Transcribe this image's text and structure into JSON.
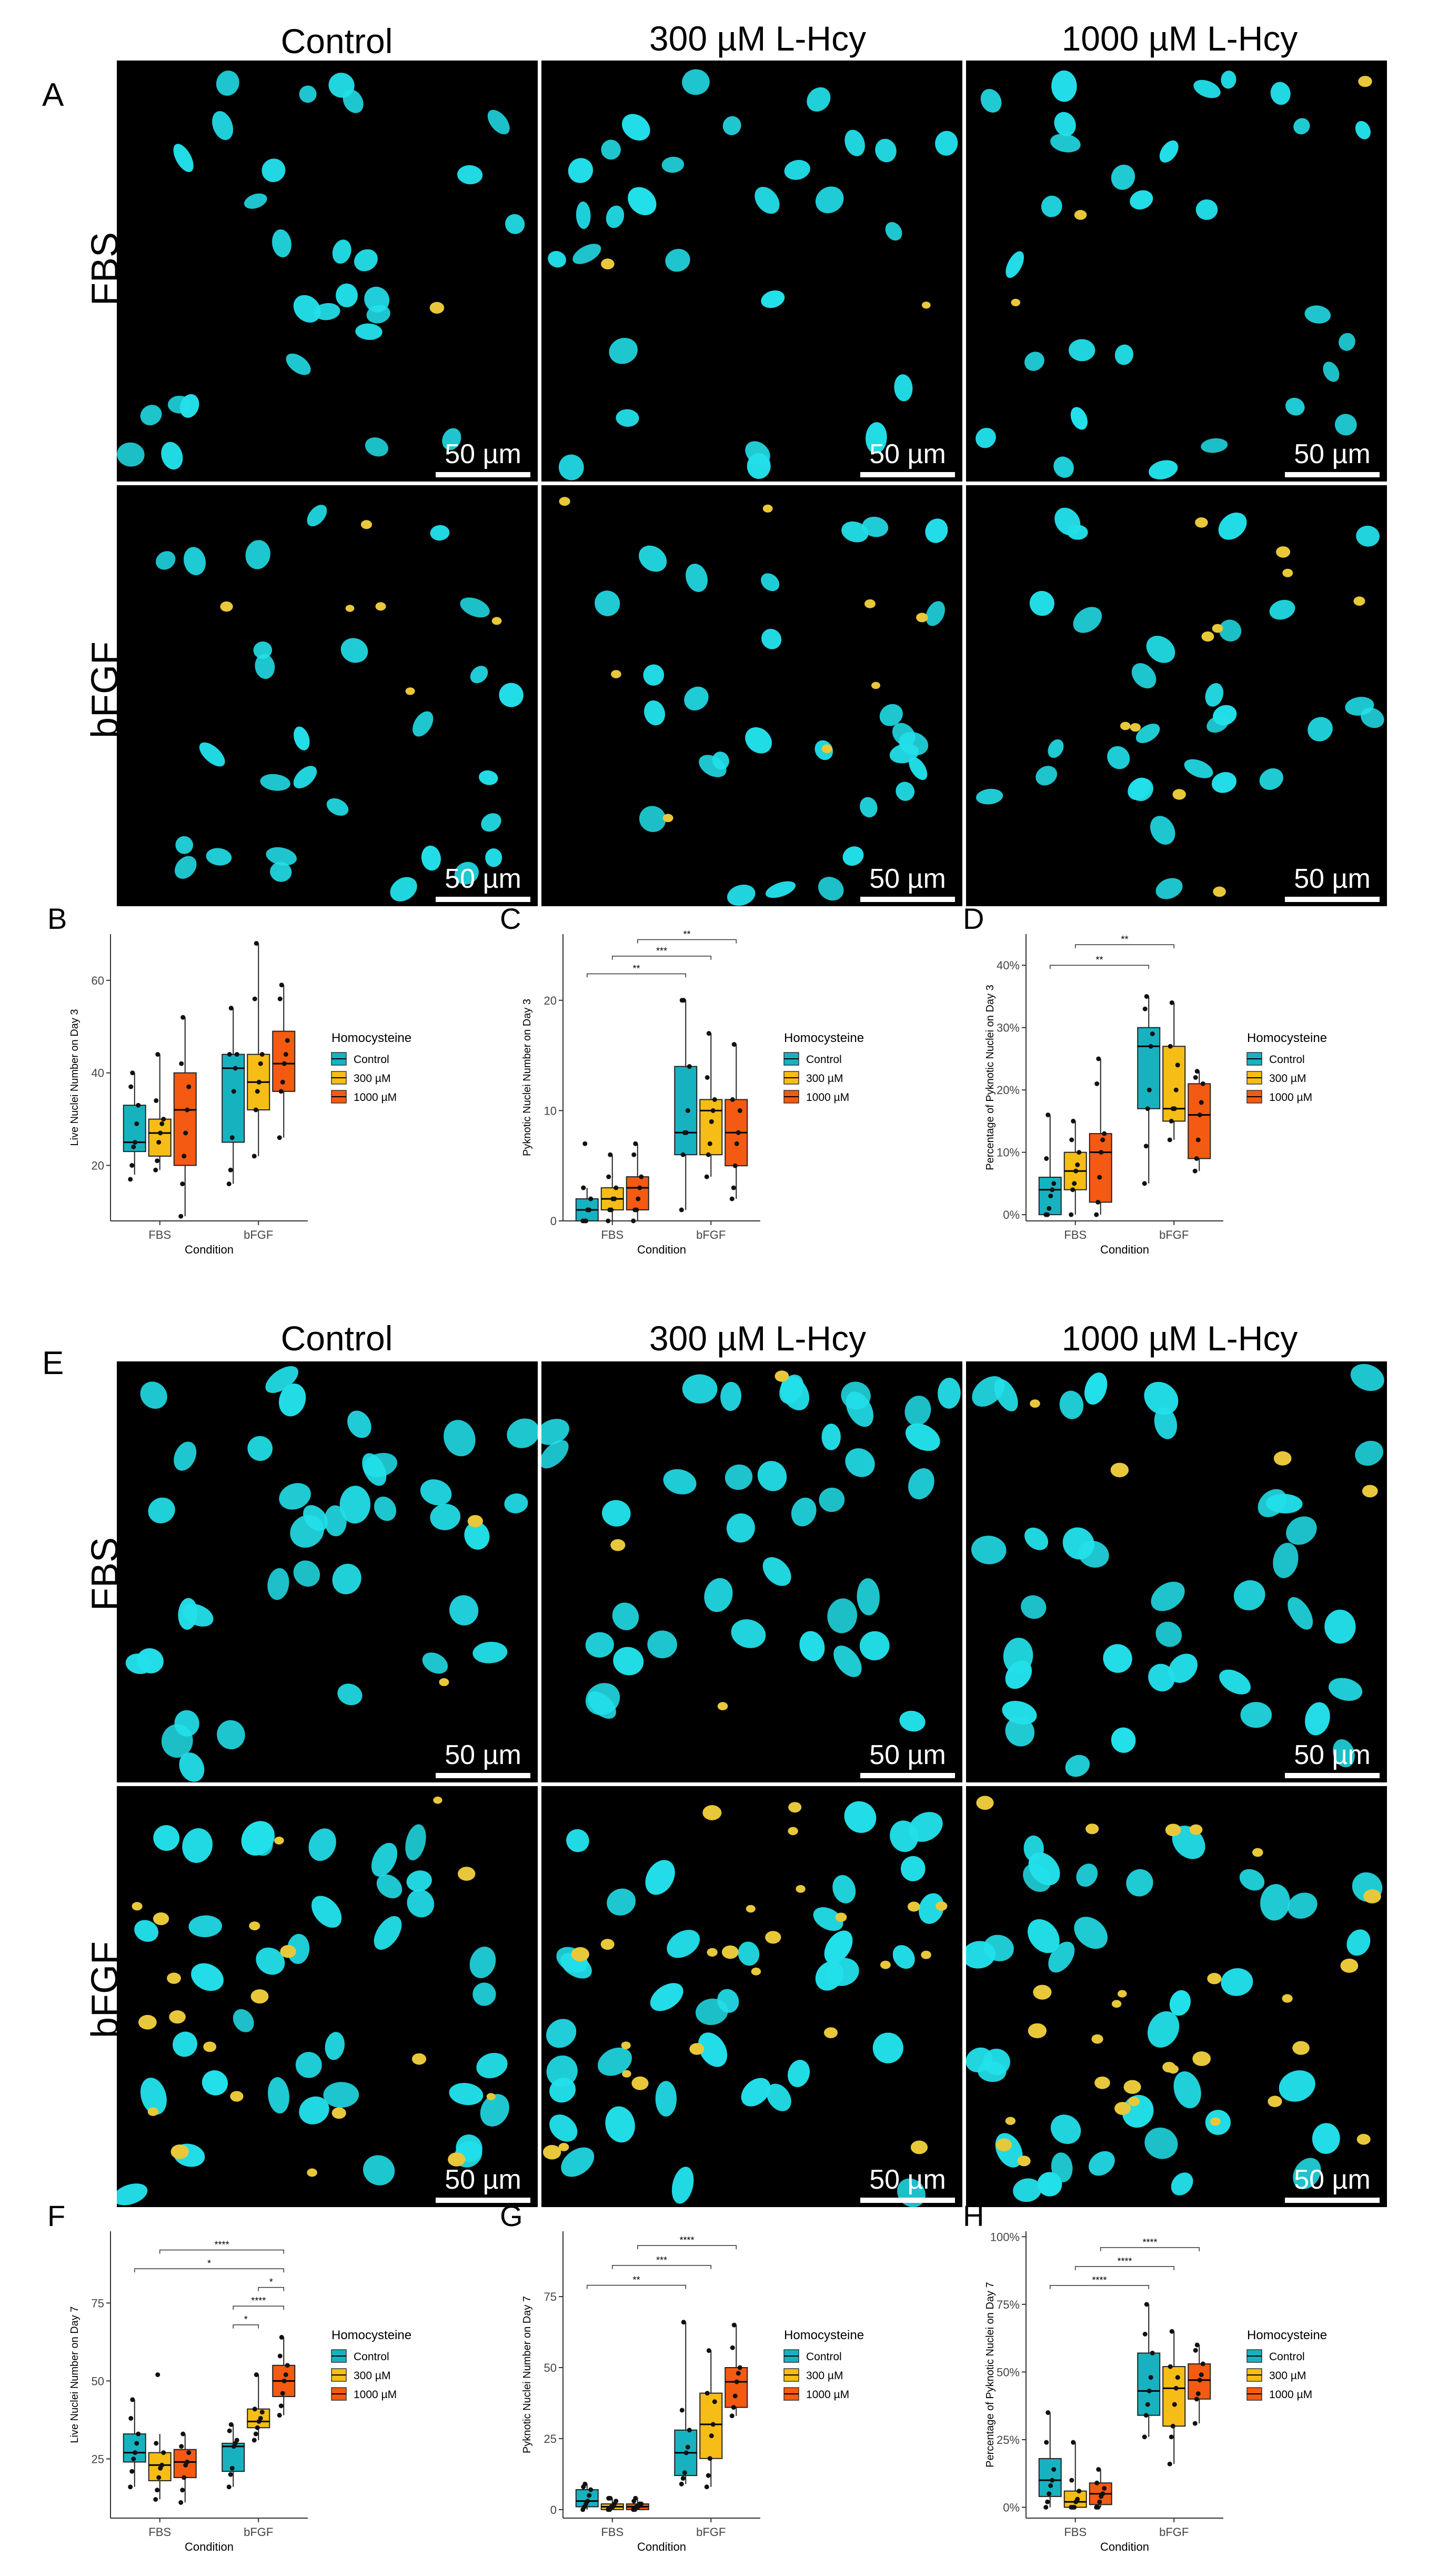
{
  "figure": {
    "panel_labels": {
      "A": "A",
      "B": "B",
      "C": "C",
      "D": "D",
      "E": "E",
      "F": "F",
      "G": "G",
      "H": "H"
    },
    "column_titles": [
      "Control",
      "300 µM L-Hcy",
      "1000 µM L-Hcy"
    ],
    "row_titles": [
      "FBS",
      "bFGF"
    ],
    "scale_bar_label": "50 µm",
    "colors": {
      "nuclei": "#22e0ea",
      "pyknotic": "#e8c83a",
      "control": "#17b2c0",
      "mid": "#f6bd16",
      "high": "#f45a12"
    }
  },
  "chart_data": [
    {
      "id": "B",
      "type": "box",
      "title": "",
      "xlabel": "Condition",
      "ylabel": "Live Nuclei Number on Day 3",
      "categories": [
        "FBS",
        "bFGF"
      ],
      "ylim": [
        8,
        70
      ],
      "yticks": [
        20,
        40,
        60
      ],
      "ytick_labels": [
        "20",
        "40",
        "60"
      ],
      "legend_title": "Homocysteine",
      "series": [
        {
          "name": "Control",
          "boxes": [
            [
              18,
              23,
              25,
              33,
              40
            ],
            [
              16,
              25,
              41,
              44,
              54
            ]
          ],
          "points": [
            [
              17,
              20,
              24,
              25,
              29,
              33,
              37,
              40
            ],
            [
              16,
              19,
              26,
              36,
              41,
              44,
              44,
              54
            ]
          ]
        },
        {
          "name": "300 µM",
          "boxes": [
            [
              19,
              22,
              27,
              30,
              44
            ],
            [
              22,
              32,
              38,
              44,
              68
            ]
          ],
          "points": [
            [
              19,
              21,
              25,
              27,
              29,
              30,
              34,
              44
            ],
            [
              22,
              32,
              36,
              38,
              42,
              44,
              56,
              68
            ]
          ]
        },
        {
          "name": "1000 µM",
          "boxes": [
            [
              9,
              20,
              32,
              40,
              52
            ],
            [
              26,
              36,
              42,
              49,
              59
            ]
          ],
          "points": [
            [
              9,
              16,
              22,
              27,
              32,
              37,
              42,
              52
            ],
            [
              26,
              36,
              38,
              42,
              44,
              47,
              56,
              59
            ]
          ]
        }
      ],
      "significance": []
    },
    {
      "id": "C",
      "type": "box",
      "title": "",
      "xlabel": "Condition",
      "ylabel": "Pyknotic Nuclei Number on Day 3",
      "categories": [
        "FBS",
        "bFGF"
      ],
      "ylim": [
        0,
        26
      ],
      "yticks": [
        0,
        10,
        20
      ],
      "ytick_labels": [
        "0",
        "10",
        "20"
      ],
      "legend_title": "Homocysteine",
      "series": [
        {
          "name": "Control",
          "boxes": [
            [
              0,
              0,
              1,
              2,
              3
            ],
            [
              1,
              6,
              8,
              14,
              20
            ]
          ],
          "points": [
            [
              0,
              0,
              0,
              1,
              1,
              2,
              3,
              7
            ],
            [
              1,
              6,
              8,
              8,
              10,
              14,
              20,
              20
            ]
          ]
        },
        {
          "name": "300 µM",
          "boxes": [
            [
              0,
              1,
              2,
              3,
              6
            ],
            [
              4,
              6,
              10,
              11,
              17
            ]
          ],
          "points": [
            [
              0,
              1,
              1,
              2,
              2,
              3,
              4,
              6
            ],
            [
              4,
              6,
              7,
              9,
              10,
              11,
              13,
              17
            ]
          ]
        },
        {
          "name": "1000 µM",
          "boxes": [
            [
              0,
              1,
              3,
              4,
              7
            ],
            [
              2,
              5,
              8,
              11,
              16
            ]
          ],
          "points": [
            [
              0,
              1,
              1,
              2,
              3,
              4,
              6,
              7
            ],
            [
              2,
              3,
              5,
              7,
              8,
              10,
              11,
              16
            ]
          ]
        }
      ],
      "significance": [
        {
          "from": [
            0,
            0
          ],
          "to": [
            1,
            0
          ],
          "label": "**",
          "y": 22.4
        },
        {
          "from": [
            0,
            1
          ],
          "to": [
            1,
            1
          ],
          "label": "***",
          "y": 24
        },
        {
          "from": [
            0,
            2
          ],
          "to": [
            1,
            2
          ],
          "label": "**",
          "y": 25.5
        }
      ]
    },
    {
      "id": "D",
      "type": "box",
      "title": "",
      "xlabel": "Condition",
      "ylabel": "Percentage of Pyknotic Nuclei on Day 3",
      "categories": [
        "FBS",
        "bFGF"
      ],
      "ylim": [
        -1,
        45
      ],
      "yticks": [
        0,
        10,
        20,
        30,
        40
      ],
      "ytick_labels": [
        "0%",
        "10%",
        "20%",
        "30%",
        "40%"
      ],
      "legend_title": "Homocysteine",
      "series": [
        {
          "name": "Control",
          "boxes": [
            [
              0,
              0,
              4,
              6,
              16
            ],
            [
              5,
              17,
              27,
              30,
              35
            ]
          ],
          "points": [
            [
              0,
              0,
              1,
              3,
              4,
              5,
              9,
              16
            ],
            [
              5,
              11,
              17,
              20,
              27,
              29,
              33,
              35
            ]
          ]
        },
        {
          "name": "300 µM",
          "boxes": [
            [
              0,
              4,
              7,
              10,
              15
            ],
            [
              12,
              15,
              17,
              27,
              34
            ]
          ],
          "points": [
            [
              0,
              4,
              5,
              7,
              8,
              10,
              12,
              15
            ],
            [
              12,
              15,
              17,
              17,
              20,
              24,
              27,
              34
            ]
          ]
        },
        {
          "name": "1000 µM",
          "boxes": [
            [
              0,
              2,
              10,
              13,
              25
            ],
            [
              7,
              9,
              16,
              21,
              23
            ]
          ],
          "points": [
            [
              0,
              2,
              6,
              10,
              12,
              13,
              21,
              25
            ],
            [
              7,
              9,
              12,
              16,
              18,
              21,
              22,
              23
            ]
          ]
        }
      ],
      "significance": [
        {
          "from": [
            0,
            0
          ],
          "to": [
            1,
            0
          ],
          "label": "**",
          "y": 40
        },
        {
          "from": [
            0,
            1
          ],
          "to": [
            1,
            1
          ],
          "label": "**",
          "y": 43.3
        }
      ]
    },
    {
      "id": "F",
      "type": "box",
      "title": "",
      "xlabel": "Condition",
      "ylabel": "Live Nuclei Number on Day 7",
      "categories": [
        "FBS",
        "bFGF"
      ],
      "ylim": [
        6,
        98
      ],
      "yticks": [
        25,
        50,
        75
      ],
      "ytick_labels": [
        "25",
        "50",
        "75"
      ],
      "legend_title": "Homocysteine",
      "series": [
        {
          "name": "Control",
          "boxes": [
            [
              16,
              24,
              27,
              33,
              44
            ],
            [
              16,
              21,
              29,
              30,
              36
            ]
          ],
          "points": [
            [
              16,
              21,
              25,
              27,
              30,
              33,
              38,
              44
            ],
            [
              16,
              20,
              22,
              29,
              30,
              31,
              34,
              36
            ]
          ]
        },
        {
          "name": "300 µM",
          "boxes": [
            [
              12,
              18,
              23,
              27,
              33
            ],
            [
              31,
              35,
              37,
              41,
              52
            ]
          ],
          "points": [
            [
              12,
              15,
              19,
              22,
              23,
              27,
              30,
              52
            ],
            [
              31,
              33,
              35,
              37,
              38,
              40,
              41,
              52
            ]
          ]
        },
        {
          "name": "1000 µM",
          "boxes": [
            [
              11,
              19,
              24,
              28,
              33
            ],
            [
              39,
              45,
              50,
              55,
              64
            ]
          ],
          "points": [
            [
              11,
              15,
              19,
              23,
              24,
              27,
              29,
              33
            ],
            [
              39,
              42,
              46,
              50,
              52,
              55,
              58,
              64
            ]
          ]
        }
      ],
      "significance": [
        {
          "from": [
            1,
            0
          ],
          "to": [
            1,
            1
          ],
          "label": "*",
          "y": 68
        },
        {
          "from": [
            1,
            0
          ],
          "to": [
            1,
            2
          ],
          "label": "****",
          "y": 74
        },
        {
          "from": [
            1,
            1
          ],
          "to": [
            1,
            2
          ],
          "label": "*",
          "y": 80
        },
        {
          "from": [
            0,
            0
          ],
          "to": [
            1,
            2
          ],
          "label": "*",
          "y": 86
        },
        {
          "from": [
            0,
            1
          ],
          "to": [
            1,
            2
          ],
          "label": "****",
          "y": 92
        }
      ]
    },
    {
      "id": "G",
      "type": "box",
      "title": "",
      "xlabel": "Condition",
      "ylabel": "Pyknotic Nuclei Number on Day 7",
      "categories": [
        "FBS",
        "bFGF"
      ],
      "ylim": [
        -3,
        98
      ],
      "yticks": [
        0,
        25,
        50,
        75
      ],
      "ytick_labels": [
        "0",
        "25",
        "50",
        "75"
      ],
      "legend_title": "Homocysteine",
      "series": [
        {
          "name": "Control",
          "boxes": [
            [
              0,
              1,
              3,
              7,
              9
            ],
            [
              9,
              12,
              20,
              28,
              66
            ]
          ],
          "points": [
            [
              0,
              1,
              2,
              3,
              5,
              7,
              8,
              9
            ],
            [
              9,
              11,
              13,
              20,
              22,
              28,
              35,
              66
            ]
          ]
        },
        {
          "name": "300 µM",
          "boxes": [
            [
              0,
              0,
              1,
              2,
              4
            ],
            [
              8,
              18,
              30,
              41,
              56
            ]
          ],
          "points": [
            [
              0,
              0,
              1,
              1,
              2,
              3,
              4,
              4
            ],
            [
              8,
              12,
              18,
              26,
              30,
              38,
              41,
              56
            ]
          ]
        },
        {
          "name": "1000 µM",
          "boxes": [
            [
              0,
              0,
              1,
              2,
              4
            ],
            [
              33,
              36,
              45,
              50,
              65
            ]
          ],
          "points": [
            [
              0,
              0,
              1,
              1,
              2,
              2,
              3,
              4
            ],
            [
              33,
              36,
              40,
              45,
              48,
              50,
              57,
              65
            ]
          ]
        }
      ],
      "significance": [
        {
          "from": [
            0,
            0
          ],
          "to": [
            1,
            0
          ],
          "label": "**",
          "y": 79
        },
        {
          "from": [
            0,
            1
          ],
          "to": [
            1,
            1
          ],
          "label": "***",
          "y": 86
        },
        {
          "from": [
            0,
            2
          ],
          "to": [
            1,
            2
          ],
          "label": "****",
          "y": 93
        }
      ]
    },
    {
      "id": "H",
      "type": "box",
      "title": "",
      "xlabel": "Condition",
      "ylabel": "Percentage of Pyknotic Nuclei on Day 7",
      "categories": [
        "FBS",
        "bFGF"
      ],
      "ylim": [
        -4,
        102
      ],
      "yticks": [
        0,
        25,
        50,
        75,
        100
      ],
      "ytick_labels": [
        "0%",
        "25%",
        "50%",
        "75%",
        "100%"
      ],
      "legend_title": "Homocysteine",
      "series": [
        {
          "name": "Control",
          "boxes": [
            [
              0,
              4,
              10,
              18,
              35
            ],
            [
              26,
              34,
              43,
              57,
              75
            ]
          ],
          "points": [
            [
              0,
              2,
              5,
              8,
              10,
              14,
              24,
              35
            ],
            [
              26,
              34,
              38,
              43,
              48,
              57,
              64,
              75
            ]
          ]
        },
        {
          "name": "300 µM",
          "boxes": [
            [
              0,
              0,
              2,
              6,
              24
            ],
            [
              16,
              30,
              44,
              52,
              65
            ]
          ],
          "points": [
            [
              0,
              0,
              0,
              2,
              3,
              6,
              10,
              24
            ],
            [
              16,
              26,
              30,
              38,
              44,
              48,
              52,
              65
            ]
          ]
        },
        {
          "name": "1000 µM",
          "boxes": [
            [
              0,
              1,
              5,
              9,
              14
            ],
            [
              31,
              40,
              47,
              53,
              60
            ]
          ],
          "points": [
            [
              0,
              0,
              2,
              4,
              5,
              7,
              9,
              14
            ],
            [
              31,
              40,
              42,
              47,
              49,
              53,
              58,
              60
            ]
          ]
        }
      ],
      "significance": [
        {
          "from": [
            0,
            0
          ],
          "to": [
            1,
            0
          ],
          "label": "****",
          "y": 82
        },
        {
          "from": [
            0,
            1
          ],
          "to": [
            1,
            1
          ],
          "label": "****",
          "y": 89
        },
        {
          "from": [
            0,
            2
          ],
          "to": [
            1,
            2
          ],
          "label": "****",
          "y": 96
        }
      ]
    }
  ]
}
